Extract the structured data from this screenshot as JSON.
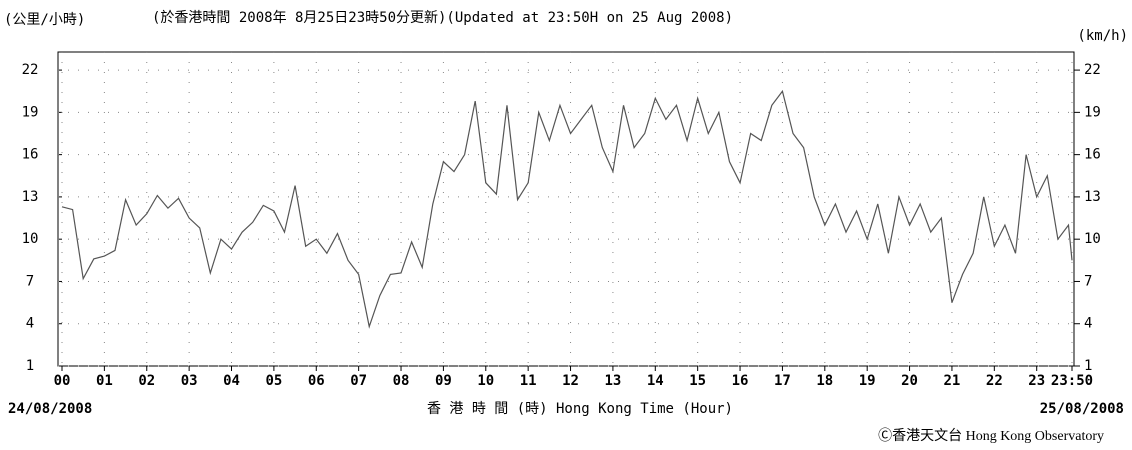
{
  "chart_data": {
    "type": "line",
    "title": "(於香港時間 2008年 8月25日23時50分更新)(Updated at 23:50H on 25 Aug 2008)",
    "y_label": "(公里/小時)",
    "y2_label": "(km/h)",
    "x_label": "香 港 時 間 (時)  Hong Kong Time (Hour)",
    "start_date": "24/08/2008",
    "end_date": "25/08/2008",
    "credit": "Ⓒ香港天文台 Hong Kong Observatory",
    "grid": true,
    "xlim": [
      0,
      23.833
    ],
    "ylim": [
      1,
      23
    ],
    "yticks": [
      1,
      4,
      7,
      10,
      13,
      16,
      19,
      22
    ],
    "xticks": [
      {
        "value": 0,
        "label": "00"
      },
      {
        "value": 1,
        "label": "01"
      },
      {
        "value": 2,
        "label": "02"
      },
      {
        "value": 3,
        "label": "03"
      },
      {
        "value": 4,
        "label": "04"
      },
      {
        "value": 5,
        "label": "05"
      },
      {
        "value": 6,
        "label": "06"
      },
      {
        "value": 7,
        "label": "07"
      },
      {
        "value": 8,
        "label": "08"
      },
      {
        "value": 9,
        "label": "09"
      },
      10,
      11,
      12,
      13,
      14,
      15,
      16,
      17,
      18,
      19,
      20,
      21,
      22,
      23,
      {
        "value": 23.833,
        "label": "23:50"
      }
    ],
    "x": [
      0,
      0.25,
      0.5,
      0.75,
      1,
      1.25,
      1.5,
      1.75,
      2,
      2.25,
      2.5,
      2.75,
      3,
      3.25,
      3.5,
      3.75,
      4,
      4.25,
      4.5,
      4.75,
      5,
      5.25,
      5.5,
      5.75,
      6,
      6.25,
      6.5,
      6.75,
      7,
      7.25,
      7.5,
      7.75,
      8,
      8.25,
      8.5,
      8.75,
      9,
      9.25,
      9.5,
      9.75,
      10,
      10.25,
      10.5,
      10.75,
      11,
      11.25,
      11.5,
      11.75,
      12,
      12.25,
      12.5,
      12.75,
      13,
      13.25,
      13.5,
      13.75,
      14,
      14.25,
      14.5,
      14.75,
      15,
      15.25,
      15.5,
      15.75,
      16,
      16.25,
      16.5,
      16.75,
      17,
      17.25,
      17.5,
      17.75,
      18,
      18.25,
      18.5,
      18.75,
      19,
      19.25,
      19.5,
      19.75,
      20,
      20.25,
      20.5,
      20.75,
      21,
      21.25,
      21.5,
      21.75,
      22,
      22.25,
      22.5,
      22.75,
      23,
      23.25,
      23.5,
      23.75,
      23.833
    ],
    "series": [
      {
        "color": "#555555",
        "values": [
          12.3,
          12.1,
          7.2,
          8.6,
          8.8,
          9.2,
          12.8,
          11.0,
          11.8,
          13.1,
          12.2,
          12.9,
          11.5,
          10.8,
          7.6,
          10.0,
          9.3,
          10.5,
          11.2,
          12.4,
          12.0,
          10.5,
          13.8,
          9.5,
          10.0,
          9.0,
          10.4,
          8.5,
          7.5,
          3.8,
          6.0,
          7.5,
          7.6,
          9.8,
          8.0,
          12.5,
          15.5,
          14.8,
          16.0,
          19.8,
          14.0,
          13.2,
          19.5,
          12.8,
          14.0,
          19.0,
          17.0,
          19.5,
          17.5,
          18.5,
          19.5,
          16.5,
          14.8,
          19.5,
          16.5,
          17.5,
          20.0,
          18.5,
          19.5,
          17.0,
          20.0,
          17.5,
          19.0,
          15.5,
          14.0,
          17.5,
          17.0,
          19.5,
          20.5,
          17.5,
          16.5,
          13.0,
          11.0,
          12.5,
          10.5,
          12.0,
          10.0,
          12.5,
          9.0,
          13.0,
          11.0,
          12.5,
          10.5,
          11.5,
          5.5,
          7.5,
          9.0,
          13.0,
          9.5,
          11.0,
          9.0,
          16.0,
          13.0,
          14.5,
          10.0,
          11.0,
          8.5
        ]
      }
    ]
  }
}
